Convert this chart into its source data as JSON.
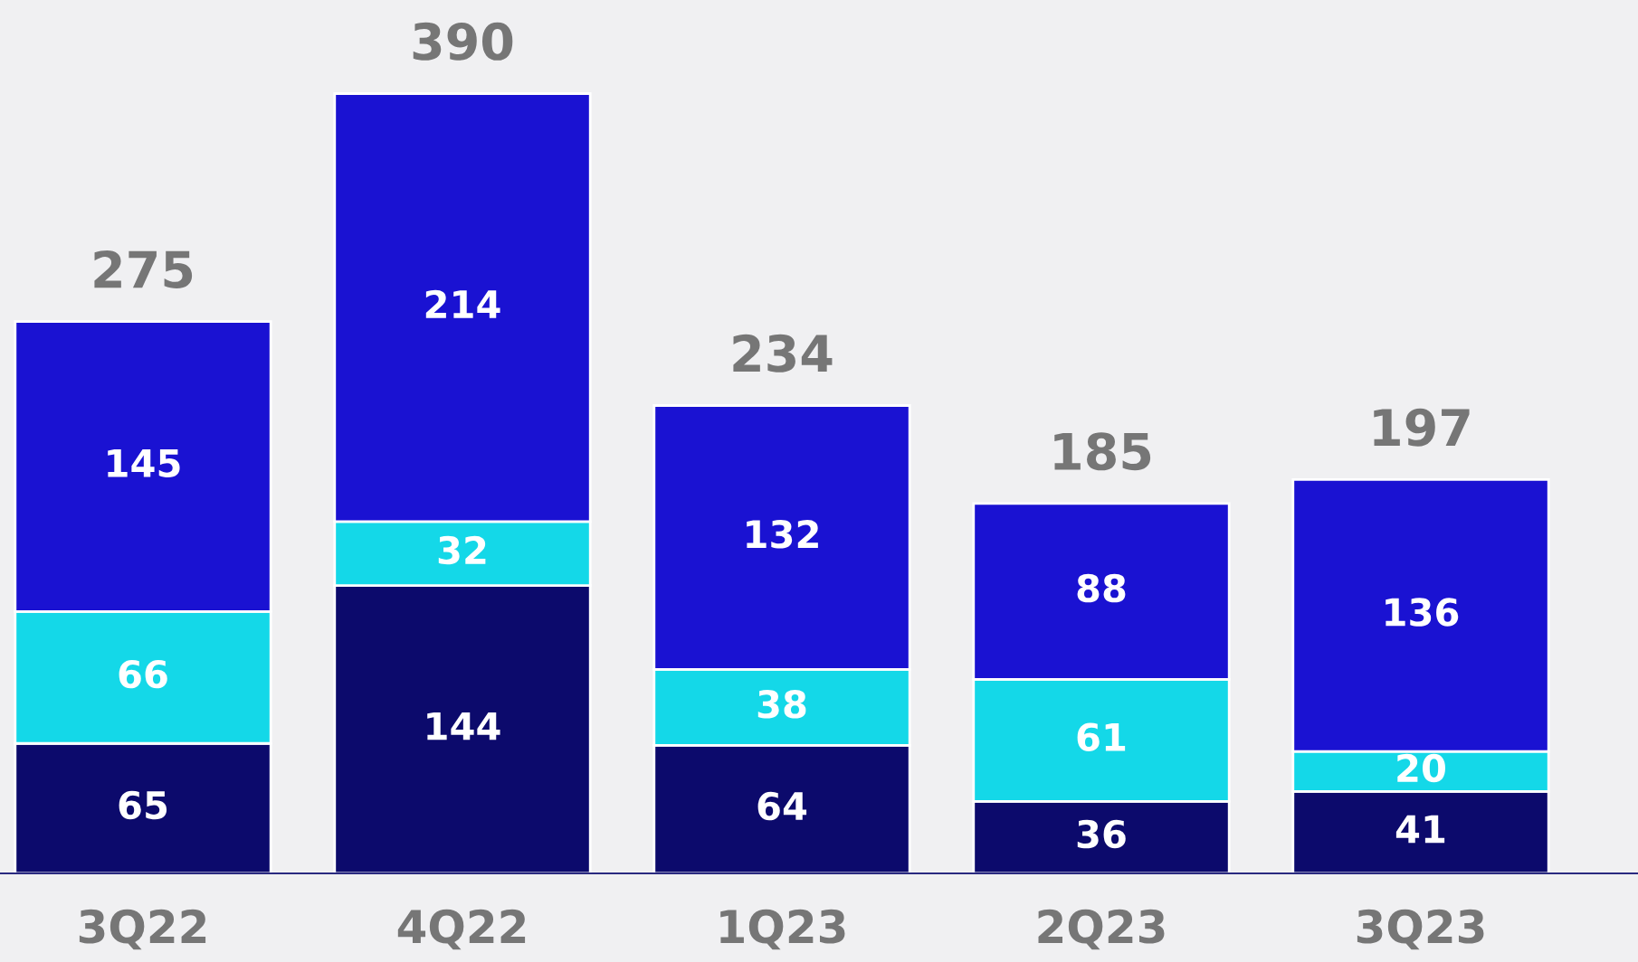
{
  "chart_data": {
    "type": "bar",
    "stacked": true,
    "categories": [
      "3Q22",
      "4Q22",
      "1Q23",
      "2Q23",
      "3Q23"
    ],
    "series": [
      {
        "color": "#0c0a6c",
        "values": [
          65,
          144,
          64,
          36,
          41
        ]
      },
      {
        "color": "#14d8e8",
        "values": [
          66,
          32,
          38,
          61,
          20
        ]
      },
      {
        "color": "#1a12d2",
        "values": [
          145,
          214,
          132,
          88,
          136
        ]
      }
    ],
    "data_labels": true,
    "totals": [
      "275",
      "390",
      "234",
      "185",
      "197"
    ],
    "grid": false,
    "legend": false
  }
}
